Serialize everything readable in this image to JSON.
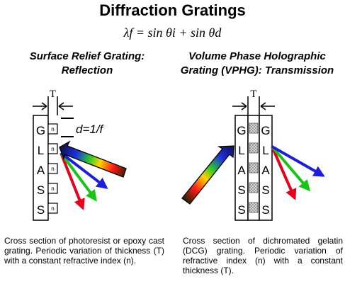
{
  "title": "Diffraction Gratings",
  "equation": "λf = sin θi + sin θd",
  "left": {
    "heading_line1": "Surface Relief Grating:",
    "heading_line2": "Reflection",
    "thickness_label": "T",
    "period_label": "d=1/f",
    "glass_letters": [
      "G",
      "L",
      "A",
      "S",
      "S"
    ],
    "index_label": "n",
    "caption": "Cross section of photoresist or epoxy cast grating. Periodic variation of thickness (T) with a constant refractive index (n)."
  },
  "right": {
    "heading_line1": "Volume Phase Holographic",
    "heading_line2": "Grating (VPHG): Transmission",
    "thickness_label": "T",
    "glass_letters": [
      "G",
      "L",
      "A",
      "S",
      "S"
    ],
    "caption": "Cross section of dichromated gelatin (DCG) grating. Periodic variation of refractive index (n) with a constant thickness (T)."
  },
  "colors": {
    "ray_red": "#e8001c",
    "ray_green": "#19c419",
    "ray_blue": "#1d1fd6",
    "fringe": "#b9b9b9"
  }
}
